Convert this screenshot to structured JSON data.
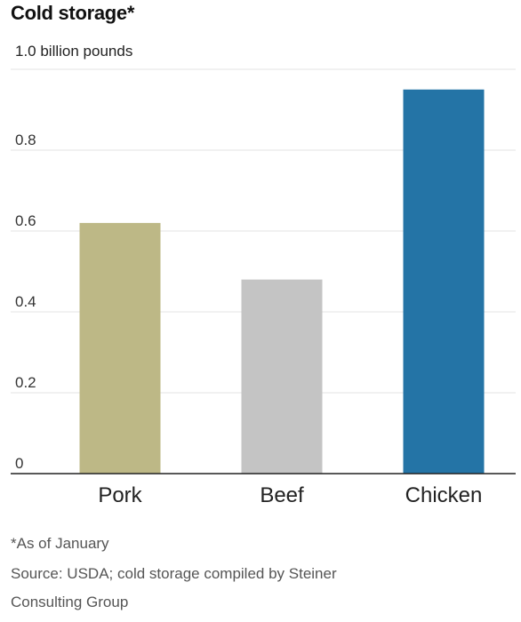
{
  "chart_data": {
    "type": "bar",
    "title": "Cold storage*",
    "unit_label": "1.0 billion pounds",
    "categories": [
      "Pork",
      "Beef",
      "Chicken"
    ],
    "values": [
      0.62,
      0.48,
      0.95
    ],
    "colors": [
      "#bdb886",
      "#c4c4c4",
      "#2474a6"
    ],
    "ylim": [
      0,
      1.0
    ],
    "yticks": [
      "0",
      "0.2",
      "0.4",
      "0.6",
      "0.8"
    ],
    "grid": true
  },
  "footnotes": {
    "asterisk": "*As of January",
    "source_line1": "Source: USDA; cold storage compiled by Steiner",
    "source_line2": "Consulting Group"
  }
}
